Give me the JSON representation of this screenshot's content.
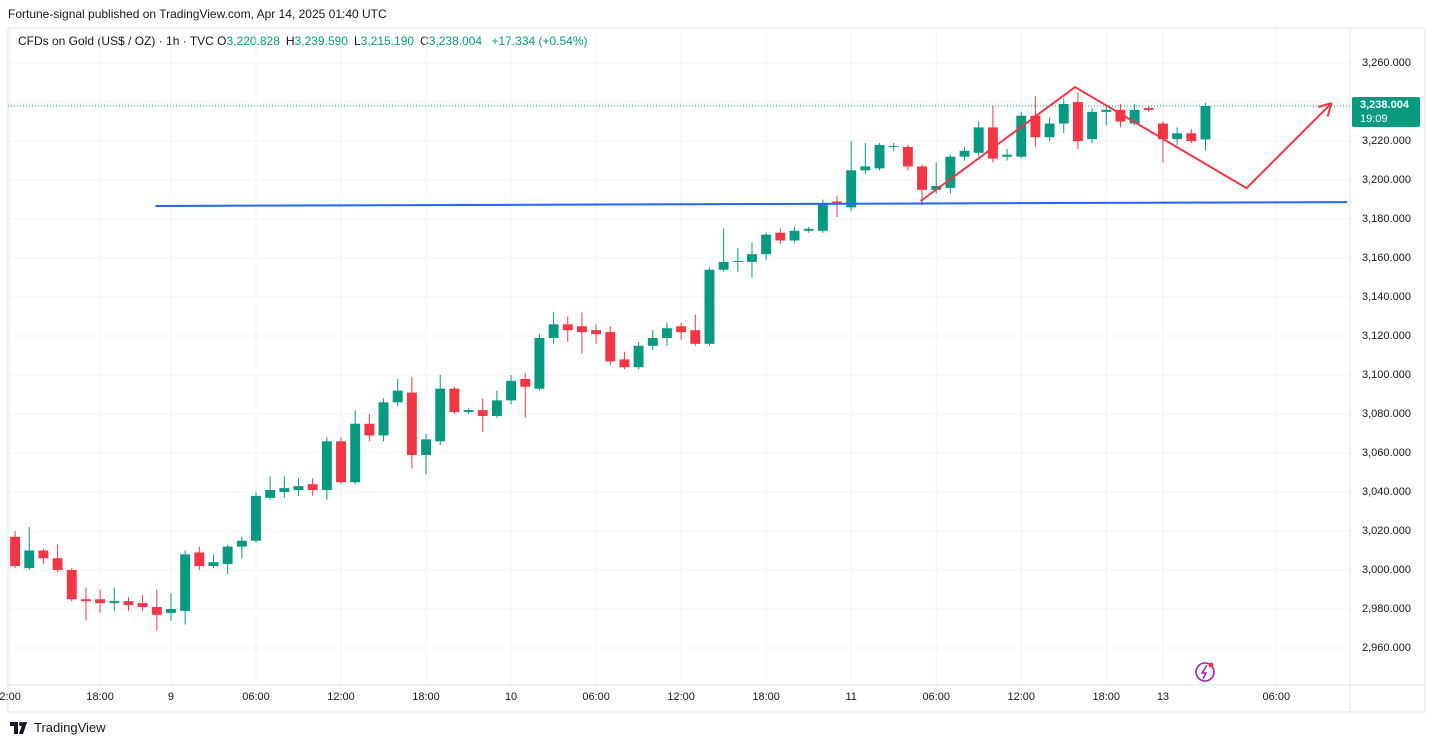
{
  "header": {
    "published": "Fortune-signal published on TradingView.com, Apr 14, 2025 01:40 UTC",
    "symbol": "CFDs on Gold (US$ / OZ) · 1h · TVC",
    "ohlc": [
      {
        "label": "O",
        "value": "3,220.828"
      },
      {
        "label": "H",
        "value": "3,239.590"
      },
      {
        "label": "L",
        "value": "3,215.190"
      },
      {
        "label": "C",
        "value": "3,238.004"
      }
    ],
    "change": "+17.334 (+0.54%)"
  },
  "footer": {
    "brand": "TradingView"
  },
  "chart_data": {
    "type": "candlestick",
    "up_color": "#089981",
    "down_color": "#f23645",
    "grid": true,
    "open": [
      3017,
      3001,
      3010,
      3006,
      3000,
      2985,
      2985,
      2983,
      2984,
      2983,
      2981,
      2978,
      2979,
      3009,
      3002,
      3003,
      3012,
      3015,
      3037,
      3040,
      3041,
      3044,
      3041,
      3066,
      3045,
      3075,
      3069,
      3086,
      3091,
      3059,
      3066,
      3093,
      3081,
      3082,
      3079,
      3087,
      3098,
      3093,
      3119,
      3126,
      3125,
      3123,
      3122,
      3108,
      3104,
      3115,
      3119,
      3125,
      3123,
      3116,
      3154,
      3158,
      3158,
      3162,
      3173,
      3169,
      3174,
      3174,
      3189,
      3186,
      3205,
      3206,
      3217,
      3217,
      3207,
      3195,
      3196,
      3212,
      3214,
      3227,
      3212,
      3212,
      3233,
      3222,
      3229,
      3240,
      3221,
      3235,
      3236,
      3229,
      3237,
      3229,
      3221,
      3224,
      3220.828
    ],
    "high": [
      3020,
      3022,
      3011,
      3013,
      3001,
      2991,
      2990,
      2991,
      2986,
      2987,
      2990,
      2988,
      3010,
      3012,
      3008,
      3013,
      3017,
      3040,
      3048,
      3048,
      3047,
      3047,
      3068,
      3068,
      3082,
      3080,
      3088,
      3098,
      3099,
      3070,
      3100,
      3094,
      3083,
      3088,
      3092,
      3100,
      3101,
      3121,
      3132,
      3130,
      3132,
      3126,
      3125,
      3112,
      3117,
      3123,
      3127,
      3127,
      3131,
      3155,
      3175,
      3165,
      3168,
      3173,
      3175,
      3176,
      3176,
      3190,
      3192,
      3220,
      3219,
      3219,
      3219,
      3218,
      3208,
      3209,
      3213,
      3217,
      3230,
      3238,
      3216,
      3235,
      3243,
      3232,
      3242,
      3245,
      3237,
      3238,
      3239,
      3239,
      3238,
      3230,
      3227,
      3226,
      3239.59
    ],
    "low": [
      3001,
      3000,
      3003,
      2999,
      2984,
      2974,
      2978,
      2979,
      2979,
      2979,
      2969,
      2974,
      2972,
      3000,
      3001,
      2998,
      3006,
      3014,
      3036,
      3037,
      3038,
      3038,
      3036,
      3044,
      3044,
      3066,
      3066,
      3084,
      3052,
      3049,
      3064,
      3080,
      3080,
      3071,
      3078,
      3085,
      3078,
      3092,
      3116,
      3117,
      3111,
      3116,
      3105,
      3103,
      3103,
      3113,
      3115,
      3118,
      3115,
      3115,
      3153,
      3153,
      3150,
      3159,
      3167,
      3168,
      3173,
      3173,
      3181,
      3184,
      3203,
      3205,
      3215,
      3205,
      3187,
      3193,
      3193,
      3210,
      3212,
      3209,
      3210,
      3211,
      3217,
      3220,
      3224,
      3216,
      3219,
      3228,
      3227,
      3228,
      3235,
      3209,
      3218,
      3219,
      3215.19
    ],
    "close": [
      3002,
      3010,
      3006,
      3000,
      2985,
      2984,
      2983,
      2984,
      2982,
      2981,
      2977,
      2980,
      3008,
      3002,
      3004,
      3012,
      3015,
      3038,
      3041,
      3042,
      3043,
      3041,
      3066,
      3045,
      3075,
      3069,
      3086,
      3092,
      3059,
      3067,
      3093,
      3081,
      3082,
      3079,
      3087,
      3097,
      3094,
      3119,
      3126,
      3123,
      3122,
      3121,
      3107,
      3104,
      3115,
      3119,
      3124,
      3122,
      3116,
      3154,
      3158,
      3158.5,
      3162,
      3172,
      3169,
      3174,
      3175,
      3188,
      3188,
      3205,
      3207,
      3218,
      3217.5,
      3207,
      3195,
      3197,
      3212,
      3215,
      3227,
      3211,
      3213,
      3233,
      3222,
      3229,
      3239,
      3220,
      3235,
      3236,
      3230,
      3236,
      3236,
      3221,
      3224,
      3220,
      3238.004
    ],
    "xlim": [
      -0.5,
      94.2
    ],
    "ylim": [
      2941,
      3278
    ],
    "xticks": [
      {
        "value": -0.35,
        "label": "2:00"
      },
      {
        "value": 6,
        "label": "18:00"
      },
      {
        "value": 11,
        "label": "9"
      },
      {
        "value": 17,
        "label": "06:00"
      },
      {
        "value": 23,
        "label": "12:00"
      },
      {
        "value": 29,
        "label": "18:00"
      },
      {
        "value": 35,
        "label": "10"
      },
      {
        "value": 41,
        "label": "06:00"
      },
      {
        "value": 47,
        "label": "12:00"
      },
      {
        "value": 53,
        "label": "18:00"
      },
      {
        "value": 59,
        "label": "11"
      },
      {
        "value": 65,
        "label": "06:00"
      },
      {
        "value": 71,
        "label": "12:00"
      },
      {
        "value": 77,
        "label": "18:00"
      },
      {
        "value": 81,
        "label": "13"
      },
      {
        "value": 89,
        "label": "06:00"
      }
    ],
    "yticks": [
      {
        "value": 2960,
        "label": "2,960.000"
      },
      {
        "value": 2980,
        "label": "2,980.000"
      },
      {
        "value": 3000,
        "label": "3,000.000"
      },
      {
        "value": 3020,
        "label": "3,020.000"
      },
      {
        "value": 3040,
        "label": "3,040.000"
      },
      {
        "value": 3060,
        "label": "3,060.000"
      },
      {
        "value": 3080,
        "label": "3,080.000"
      },
      {
        "value": 3100,
        "label": "3,100.000"
      },
      {
        "value": 3120,
        "label": "3,120.000"
      },
      {
        "value": 3140,
        "label": "3,140.000"
      },
      {
        "value": 3160,
        "label": "3,160.000"
      },
      {
        "value": 3180,
        "label": "3,180.000"
      },
      {
        "value": 3200,
        "label": "3,200.000"
      },
      {
        "value": 3220,
        "label": "3,220.000"
      },
      {
        "value": 3240,
        "label": "3,240.000"
      },
      {
        "value": 3260,
        "label": "3,260.000"
      }
    ],
    "last_price": {
      "value": 3238.004,
      "label": "3,238.004",
      "countdown": "19:09"
    },
    "support_line": {
      "color": "#2962ff",
      "x": [
        9.9,
        94
      ],
      "y": [
        3186.7,
        3188.7
      ]
    },
    "projection": {
      "color": "#f23645",
      "x": [
        63.9,
        74.8,
        86.9,
        92.9
      ],
      "y": [
        3189.2,
        3247.7,
        3195.9,
        3239.5
      ]
    }
  }
}
